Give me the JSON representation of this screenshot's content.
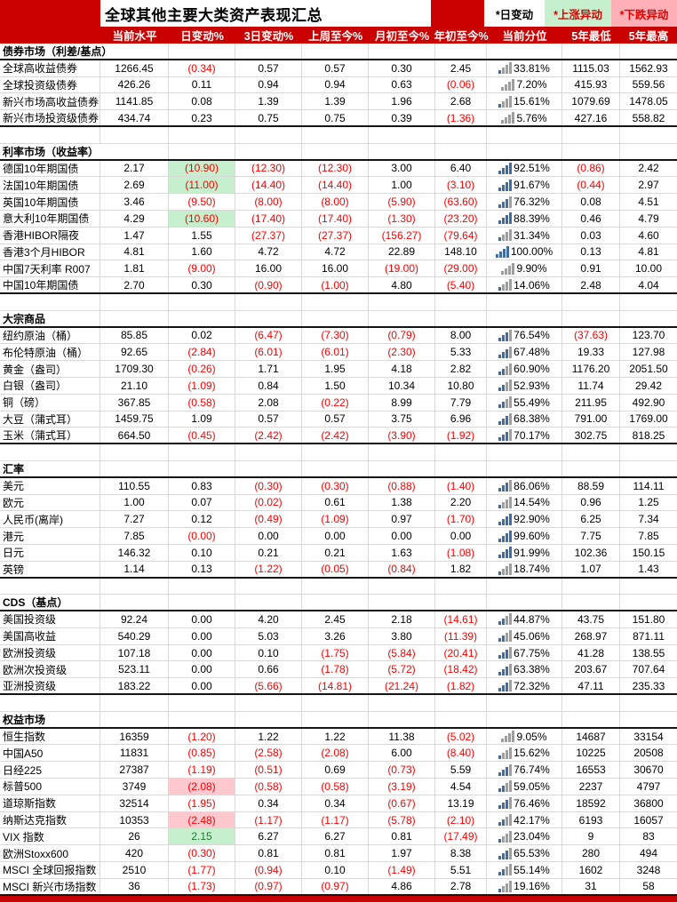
{
  "title": "全球其他主要大类资产表现汇总",
  "legend": {
    "daily": "*日变动",
    "up": "*上涨异动",
    "down": "*下跌异动"
  },
  "colors": {
    "header_red": "#C90000",
    "negative_text": "#FE0000",
    "up_highlight_bg": "#C6EFCE",
    "down_highlight_bg": "#FFC7CE",
    "positive_green_text": "#1E7A2E",
    "percentile_bar_blue": "#3E6CA5",
    "percentile_bar_gray": "#9E9E9E"
  },
  "chart_data": {
    "type": "table",
    "columns": [
      "当前水平",
      "日变动%",
      "3日变动%",
      "上周至今%",
      "月初至今%",
      "年初至今%",
      "当前分位",
      "5年最低",
      "5年最高"
    ],
    "sections": [
      {
        "name": "债券市场（利差/基点）",
        "rows": [
          {
            "label": "全球高收益债券",
            "values": [
              "1266.45",
              "(0.34)",
              "0.57",
              "0.57",
              "0.30",
              "2.45",
              "33.81%",
              "1115.03",
              "1562.93"
            ]
          },
          {
            "label": "全球投资级债券",
            "values": [
              "426.26",
              "0.11",
              "0.94",
              "0.94",
              "0.63",
              "(0.06)",
              "7.20%",
              "415.93",
              "559.56"
            ]
          },
          {
            "label": "新兴市场高收益债券",
            "values": [
              "1141.85",
              "0.08",
              "1.39",
              "1.39",
              "1.96",
              "2.68",
              "15.61%",
              "1079.69",
              "1478.05"
            ]
          },
          {
            "label": "新兴市场投资级债券",
            "values": [
              "434.74",
              "0.23",
              "0.75",
              "0.75",
              "0.39",
              "(1.36)",
              "5.76%",
              "427.16",
              "558.82"
            ]
          }
        ]
      },
      {
        "name": "利率市场（收益率）",
        "rows": [
          {
            "label": "德国10年期国债",
            "values": [
              "2.17",
              "(10.90)",
              "(12.30)",
              "(12.30)",
              "3.00",
              "6.40",
              "92.51%",
              "(0.86)",
              "2.42"
            ],
            "hl": {
              "1": "green"
            }
          },
          {
            "label": "法国10年期国债",
            "values": [
              "2.69",
              "(11.00)",
              "(14.40)",
              "(14.40)",
              "1.00",
              "(3.10)",
              "91.67%",
              "(0.44)",
              "2.97"
            ],
            "hl": {
              "1": "green"
            }
          },
          {
            "label": "英国10年期国债",
            "values": [
              "3.46",
              "(9.50)",
              "(8.00)",
              "(8.00)",
              "(5.90)",
              "(63.60)",
              "76.32%",
              "0.08",
              "4.51"
            ]
          },
          {
            "label": "意大利10年期国债",
            "values": [
              "4.29",
              "(10.60)",
              "(17.40)",
              "(17.40)",
              "(1.30)",
              "(23.20)",
              "88.39%",
              "0.46",
              "4.79"
            ],
            "hl": {
              "1": "green"
            }
          },
          {
            "label": "香港HIBOR隔夜",
            "values": [
              "1.47",
              "1.55",
              "(27.37)",
              "(27.37)",
              "(156.27)",
              "(79.64)",
              "31.34%",
              "0.03",
              "4.60"
            ]
          },
          {
            "label": "香港3个月HIBOR",
            "values": [
              "4.81",
              "1.60",
              "4.72",
              "4.72",
              "22.89",
              "148.10",
              "100.00%",
              "0.13",
              "4.81"
            ]
          },
          {
            "label": "中国7天利率 R007",
            "values": [
              "1.81",
              "(9.00)",
              "16.00",
              "16.00",
              "(19.00)",
              "(29.00)",
              "9.90%",
              "0.91",
              "10.00"
            ]
          },
          {
            "label": "中国10年期国债",
            "values": [
              "2.70",
              "0.30",
              "(0.90)",
              "(1.00)",
              "4.80",
              "(5.40)",
              "14.06%",
              "2.48",
              "4.04"
            ]
          }
        ]
      },
      {
        "name": "大宗商品",
        "rows": [
          {
            "label": "纽约原油（桶）",
            "values": [
              "85.85",
              "0.02",
              "(6.47)",
              "(7.30)",
              "(0.79)",
              "8.00",
              "76.54%",
              "(37.63)",
              "123.70"
            ]
          },
          {
            "label": "布伦特原油（桶）",
            "values": [
              "92.65",
              "(2.84)",
              "(6.01)",
              "(6.01)",
              "(2.30)",
              "5.33",
              "67.48%",
              "19.33",
              "127.98"
            ]
          },
          {
            "label": "黄金（盎司）",
            "values": [
              "1709.30",
              "(0.26)",
              "1.71",
              "1.95",
              "4.18",
              "2.82",
              "60.90%",
              "1176.20",
              "2051.50"
            ]
          },
          {
            "label": "白银（盎司）",
            "values": [
              "21.10",
              "(1.09)",
              "0.84",
              "1.50",
              "10.34",
              "10.80",
              "52.93%",
              "11.74",
              "29.42"
            ]
          },
          {
            "label": "铜（磅）",
            "values": [
              "367.85",
              "(0.58)",
              "2.08",
              "(0.22)",
              "8.99",
              "7.79",
              "55.49%",
              "211.95",
              "492.90"
            ]
          },
          {
            "label": "大豆（蒲式耳）",
            "values": [
              "1459.75",
              "1.09",
              "0.57",
              "0.57",
              "3.75",
              "6.96",
              "68.38%",
              "791.00",
              "1769.00"
            ]
          },
          {
            "label": "玉米（蒲式耳）",
            "values": [
              "664.50",
              "(0.45)",
              "(2.42)",
              "(2.42)",
              "(3.90)",
              "(1.92)",
              "70.17%",
              "302.75",
              "818.25"
            ]
          }
        ]
      },
      {
        "name": "汇率",
        "rows": [
          {
            "label": "美元",
            "values": [
              "110.55",
              "0.83",
              "(0.30)",
              "(0.30)",
              "(0.88)",
              "(1.40)",
              "86.06%",
              "88.59",
              "114.11"
            ]
          },
          {
            "label": "欧元",
            "values": [
              "1.00",
              "0.07",
              "(0.02)",
              "0.61",
              "1.38",
              "2.20",
              "14.54%",
              "0.96",
              "1.25"
            ]
          },
          {
            "label": "人民币(离岸)",
            "values": [
              "7.27",
              "0.12",
              "(0.49)",
              "(1.09)",
              "0.97",
              "(1.70)",
              "92.90%",
              "6.25",
              "7.34"
            ]
          },
          {
            "label": "港元",
            "values": [
              "7.85",
              "(0.00)",
              "0.00",
              "0.00",
              "0.00",
              "0.00",
              "99.60%",
              "7.75",
              "7.85"
            ]
          },
          {
            "label": "日元",
            "values": [
              "146.32",
              "0.10",
              "0.21",
              "0.21",
              "1.63",
              "(1.08)",
              "91.99%",
              "102.36",
              "150.15"
            ]
          },
          {
            "label": "英镑",
            "values": [
              "1.14",
              "0.13",
              "(1.22)",
              "(0.05)",
              "(0.84)",
              "1.82",
              "18.74%",
              "1.07",
              "1.43"
            ]
          }
        ]
      },
      {
        "name": "CDS（基点）",
        "rows": [
          {
            "label": "美国投资级",
            "values": [
              "92.24",
              "0.00",
              "4.20",
              "2.45",
              "2.18",
              "(14.61)",
              "44.87%",
              "43.75",
              "151.80"
            ]
          },
          {
            "label": "美国高收益",
            "values": [
              "540.29",
              "0.00",
              "5.03",
              "3.26",
              "3.80",
              "(11.39)",
              "45.06%",
              "268.97",
              "871.11"
            ]
          },
          {
            "label": "欧洲投资级",
            "values": [
              "107.18",
              "0.00",
              "0.10",
              "(1.75)",
              "(5.84)",
              "(20.41)",
              "67.75%",
              "41.28",
              "138.55"
            ]
          },
          {
            "label": "欧洲次投资级",
            "values": [
              "523.11",
              "0.00",
              "0.66",
              "(1.78)",
              "(5.72)",
              "(18.42)",
              "63.38%",
              "203.67",
              "707.64"
            ]
          },
          {
            "label": "亚洲投资级",
            "values": [
              "183.22",
              "0.00",
              "(5.66)",
              "(14.81)",
              "(21.24)",
              "(1.82)",
              "72.32%",
              "47.11",
              "235.33"
            ]
          }
        ]
      },
      {
        "name": "权益市场",
        "rows": [
          {
            "label": "恒生指数",
            "values": [
              "16359",
              "(1.20)",
              "1.22",
              "1.22",
              "11.38",
              "(5.02)",
              "9.05%",
              "14687",
              "33154"
            ]
          },
          {
            "label": "中国A50",
            "values": [
              "11831",
              "(0.85)",
              "(2.58)",
              "(2.08)",
              "6.00",
              "(8.40)",
              "15.62%",
              "10225",
              "20508"
            ]
          },
          {
            "label": "日经225",
            "values": [
              "27387",
              "(1.19)",
              "(0.51)",
              "0.69",
              "(0.73)",
              "5.59",
              "76.74%",
              "16553",
              "30670"
            ]
          },
          {
            "label": "标普500",
            "values": [
              "3749",
              "(2.08)",
              "(0.58)",
              "(0.58)",
              "(3.19)",
              "4.54",
              "59.05%",
              "2237",
              "4797"
            ],
            "hl": {
              "1": "pink"
            }
          },
          {
            "label": "道琼斯指数",
            "values": [
              "32514",
              "(1.95)",
              "0.34",
              "0.34",
              "(0.67)",
              "13.19",
              "76.46%",
              "18592",
              "36800"
            ]
          },
          {
            "label": "纳斯达克指数",
            "values": [
              "10353",
              "(2.48)",
              "(1.17)",
              "(1.17)",
              "(5.78)",
              "(2.10)",
              "42.17%",
              "6193",
              "16057"
            ],
            "hl": {
              "1": "pink"
            }
          },
          {
            "label": "VIX 指数",
            "values": [
              "26",
              "2.15",
              "6.27",
              "6.27",
              "0.81",
              "(17.49)",
              "23.04%",
              "9",
              "83"
            ],
            "hl": {
              "1": "green"
            }
          },
          {
            "label": "欧洲Stoxx600",
            "values": [
              "420",
              "(0.30)",
              "0.81",
              "0.81",
              "1.97",
              "8.38",
              "65.53%",
              "280",
              "494"
            ]
          },
          {
            "label": "MSCI 全球回报指数",
            "values": [
              "2510",
              "(1.77)",
              "(0.94)",
              "0.10",
              "(1.49)",
              "5.51",
              "55.14%",
              "1602",
              "3248"
            ]
          },
          {
            "label": "MSCI 新兴市场指数",
            "values": [
              "36",
              "(1.73)",
              "(0.97)",
              "(0.97)",
              "4.86",
              "2.78",
              "19.16%",
              "31",
              "58"
            ]
          }
        ]
      }
    ]
  }
}
